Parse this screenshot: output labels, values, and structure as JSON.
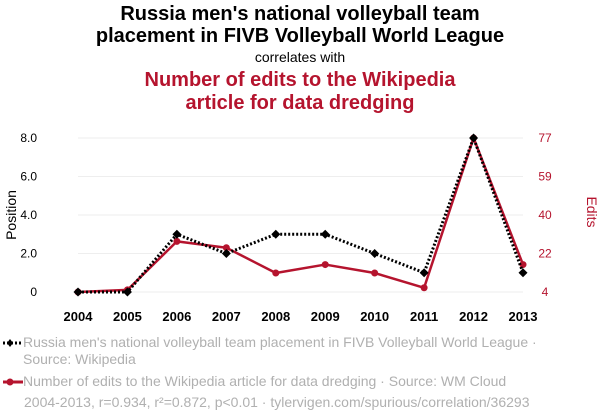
{
  "header": {
    "title_line1": "Russia men's national volleyball team",
    "title_line2": "placement in FIVB Volleyball World League",
    "correlates": "correlates with",
    "subtitle_line1": "Number of edits to the Wikipedia",
    "subtitle_line2": "article for data dredging"
  },
  "legend": {
    "series1": "Russia men's national volleyball team placement in FIVB Volleyball World League · Source: Wikipedia",
    "series2": "Number of edits to the Wikipedia article for data dredging · Source: WM Cloud"
  },
  "footer": "2004-2013, r=0.934, r²=0.872, p<0.01 · tylervigen.com/spurious/correlation/36293",
  "colors": {
    "series1": "#000000",
    "series2": "#b5142e",
    "axis_text": "#000000",
    "grid": "#eeeeee"
  },
  "chart_data": {
    "type": "line",
    "x": [
      "2004",
      "2005",
      "2006",
      "2007",
      "2008",
      "2009",
      "2010",
      "2011",
      "2012",
      "2013"
    ],
    "xlabel": "",
    "ylabel_left": "Position",
    "ylabel_right": "Edits",
    "ylim_left": [
      0,
      8
    ],
    "ylim_right": [
      4,
      77
    ],
    "yticks_left": [
      "0",
      "2.0",
      "4.0",
      "6.0",
      "8.0"
    ],
    "yticks_right": [
      "4",
      "22",
      "40",
      "59",
      "77"
    ],
    "series": [
      {
        "name": "Russia men's national volleyball team placement in FIVB Volleyball World League",
        "axis": "left",
        "style": "dotted",
        "marker": "diamond",
        "values": [
          0,
          0,
          3,
          2,
          3,
          3,
          2,
          1,
          8,
          1
        ]
      },
      {
        "name": "Number of edits to the Wikipedia article for data dredging",
        "axis": "right",
        "style": "solid",
        "marker": "circle",
        "values": [
          4,
          5,
          28,
          25,
          13,
          17,
          13,
          6,
          77,
          17
        ]
      }
    ]
  }
}
